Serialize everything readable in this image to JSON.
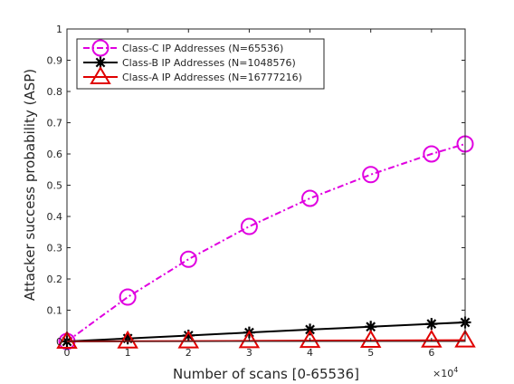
{
  "chart_data": {
    "type": "line",
    "title": "",
    "xlabel": "Number of scans [0-65536]",
    "ylabel": "Attacker success probability (ASP)",
    "x_multiplier_label": "×10",
    "x_multiplier_exponent": "4",
    "xlim": [
      0,
      6.5536
    ],
    "ylim": [
      0,
      1
    ],
    "x_ticks": [
      0,
      1,
      2,
      3,
      4,
      5,
      6
    ],
    "x_tick_labels": [
      "0",
      "1",
      "2",
      "3",
      "4",
      "5",
      "6"
    ],
    "y_ticks": [
      0,
      0.1,
      0.2,
      0.3,
      0.4,
      0.5,
      0.6,
      0.7,
      0.8,
      0.9,
      1
    ],
    "y_tick_labels": [
      "0",
      "0.1",
      "0.2",
      "0.3",
      "0.4",
      "0.5",
      "0.6",
      "0.7",
      "0.8",
      "0.9",
      "1"
    ],
    "x": [
      0,
      1,
      2,
      3,
      4,
      5,
      6,
      6.5536
    ],
    "grid": false,
    "legend_position": "top-left",
    "series": [
      {
        "name": "Class-C IP Addresses (N=65536)",
        "color": "#e000e0",
        "line_style": "dash-dot",
        "marker": "circle",
        "values": [
          0,
          0.142,
          0.263,
          0.368,
          0.458,
          0.534,
          0.6,
          0.632
        ]
      },
      {
        "name": "Class-B IP Addresses (N=1048576)",
        "color": "#000000",
        "line_style": "solid",
        "marker": "asterisk",
        "values": [
          0,
          0.0095,
          0.019,
          0.0285,
          0.038,
          0.047,
          0.056,
          0.061
        ]
      },
      {
        "name": "Class-A IP Addresses (N=16777216)",
        "color": "#e00000",
        "line_style": "solid",
        "marker": "triangle",
        "values": [
          0,
          0.0006,
          0.0012,
          0.0018,
          0.0024,
          0.003,
          0.0036,
          0.0039
        ]
      }
    ]
  }
}
